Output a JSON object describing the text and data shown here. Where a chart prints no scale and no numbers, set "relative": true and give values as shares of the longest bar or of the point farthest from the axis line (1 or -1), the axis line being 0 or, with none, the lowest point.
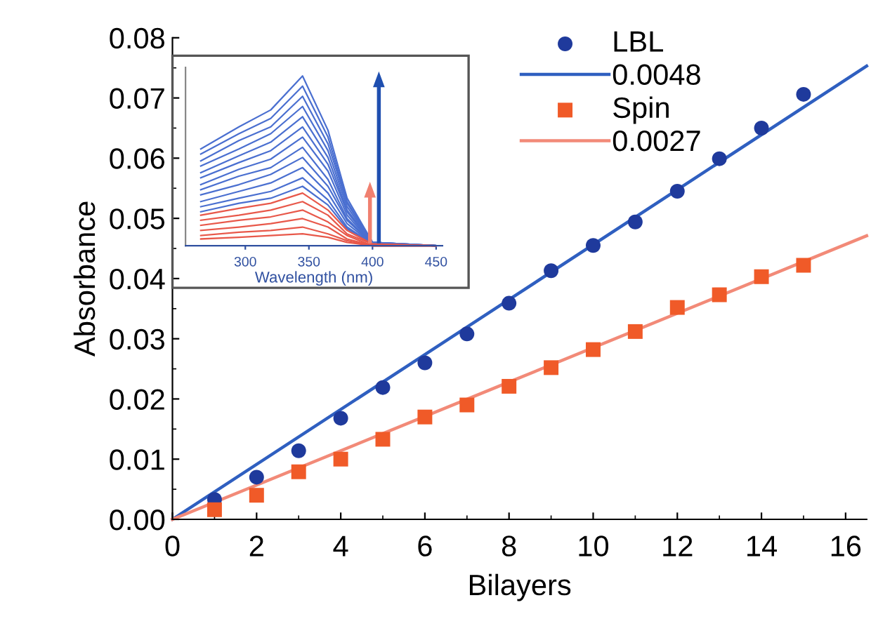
{
  "chart_data": [
    {
      "type": "scatter",
      "xlabel": "Bilayers",
      "ylabel": "Absorbance",
      "xlim": [
        0,
        16.5
      ],
      "ylim": [
        0,
        0.08
      ],
      "xticks": [
        0,
        2,
        4,
        6,
        8,
        10,
        12,
        14,
        16
      ],
      "yticks": [
        {
          "value": 0,
          "label": "0.00"
        },
        {
          "value": 0.01,
          "label": "0.01"
        },
        {
          "value": 0.02,
          "label": "0.02"
        },
        {
          "value": 0.03,
          "label": "0.03"
        },
        {
          "value": 0.04,
          "label": "0.04"
        },
        {
          "value": 0.05,
          "label": "0.05"
        },
        {
          "value": 0.06,
          "label": "0.06"
        },
        {
          "value": 0.07,
          "label": "0.07"
        },
        {
          "value": 0.08,
          "label": "0.08"
        }
      ],
      "x": [
        1,
        2,
        3,
        4,
        5,
        6,
        7,
        8,
        9,
        10,
        11,
        12,
        13,
        14,
        15
      ],
      "legend": "top right",
      "grid": false,
      "series": [
        {
          "name": "LBL",
          "type": "scatter",
          "marker": "circle",
          "color": "#1f3a9c",
          "values": [
            0.0033,
            0.007,
            0.0114,
            0.0168,
            0.0219,
            0.026,
            0.0308,
            0.0359,
            0.0413,
            0.0455,
            0.0494,
            0.0545,
            0.0599,
            0.065,
            0.0706
          ]
        },
        {
          "name": "0.0048",
          "type": "line",
          "color": "#2f5fc0",
          "x": [
            0,
            8,
            16.5
          ],
          "values": [
            0,
            0.0365,
            0.0753
          ]
        },
        {
          "name": "Spin",
          "type": "scatter",
          "marker": "square",
          "color": "#f05a28",
          "values": [
            0.0016,
            0.004,
            0.0079,
            0.01,
            0.0133,
            0.017,
            0.019,
            0.0221,
            0.0252,
            0.0282,
            0.0312,
            0.0352,
            0.0373,
            0.0403,
            0.0422
          ]
        },
        {
          "name": "0.0027",
          "type": "line",
          "color": "#f28a78",
          "x": [
            0,
            8,
            16.5
          ],
          "values": [
            0,
            0.0228,
            0.0471
          ]
        }
      ]
    },
    {
      "type": "line",
      "relative": true,
      "xlabel": "Wavelength (nm)",
      "xlim": [
        253,
        455
      ],
      "xticks": [
        300,
        350,
        400,
        450
      ],
      "tick_labels": "x",
      "x": [
        265,
        295,
        320,
        345,
        365,
        380,
        400,
        450
      ],
      "series": [
        {
          "color": "#4a6fd0",
          "values": [
            0.57,
            0.7,
            0.8,
            1.0,
            0.68,
            0.28,
            0.02,
            0
          ]
        },
        {
          "color": "#4a6fd0",
          "values": [
            0.54,
            0.66,
            0.75,
            0.94,
            0.64,
            0.26,
            0.02,
            0
          ]
        },
        {
          "color": "#4a6fd0",
          "values": [
            0.5,
            0.62,
            0.7,
            0.88,
            0.6,
            0.25,
            0.02,
            0
          ]
        },
        {
          "color": "#4a6fd0",
          "values": [
            0.47,
            0.57,
            0.66,
            0.82,
            0.56,
            0.23,
            0.02,
            0
          ]
        },
        {
          "color": "#4a6fd0",
          "values": [
            0.43,
            0.53,
            0.61,
            0.76,
            0.52,
            0.21,
            0.02,
            0
          ]
        },
        {
          "color": "#4a6fd0",
          "values": [
            0.4,
            0.49,
            0.56,
            0.7,
            0.48,
            0.2,
            0.01,
            0
          ]
        },
        {
          "color": "#4a6fd0",
          "values": [
            0.36,
            0.45,
            0.51,
            0.64,
            0.44,
            0.18,
            0.01,
            0
          ]
        },
        {
          "color": "#4a6fd0",
          "values": [
            0.33,
            0.41,
            0.46,
            0.58,
            0.39,
            0.16,
            0.01,
            0
          ]
        },
        {
          "color": "#4a6fd0",
          "values": [
            0.3,
            0.36,
            0.42,
            0.52,
            0.35,
            0.15,
            0.01,
            0
          ]
        },
        {
          "color": "#4a6fd0",
          "values": [
            0.26,
            0.32,
            0.37,
            0.46,
            0.31,
            0.13,
            0.01,
            0
          ]
        },
        {
          "color": "#4a6fd0",
          "values": [
            0.23,
            0.28,
            0.32,
            0.4,
            0.27,
            0.11,
            0.01,
            0
          ]
        },
        {
          "color": "#4a6fd0",
          "values": [
            0.2,
            0.25,
            0.28,
            0.35,
            0.24,
            0.1,
            0.01,
            0
          ]
        },
        {
          "color": "#e8584a",
          "values": [
            0.18,
            0.22,
            0.25,
            0.31,
            0.21,
            0.09,
            0.01,
            0
          ]
        },
        {
          "color": "#e8584a",
          "values": [
            0.15,
            0.18,
            0.21,
            0.26,
            0.18,
            0.07,
            0.01,
            0
          ]
        },
        {
          "color": "#e8584a",
          "values": [
            0.12,
            0.15,
            0.17,
            0.21,
            0.14,
            0.06,
            0,
            0
          ]
        },
        {
          "color": "#e8584a",
          "values": [
            0.09,
            0.11,
            0.13,
            0.16,
            0.11,
            0.04,
            0,
            0
          ]
        },
        {
          "color": "#e8584a",
          "values": [
            0.06,
            0.08,
            0.09,
            0.11,
            0.07,
            0.03,
            0,
            0
          ]
        },
        {
          "color": "#e8584a",
          "values": [
            0.04,
            0.05,
            0.06,
            0.07,
            0.05,
            0.02,
            0,
            0
          ]
        }
      ]
    }
  ]
}
